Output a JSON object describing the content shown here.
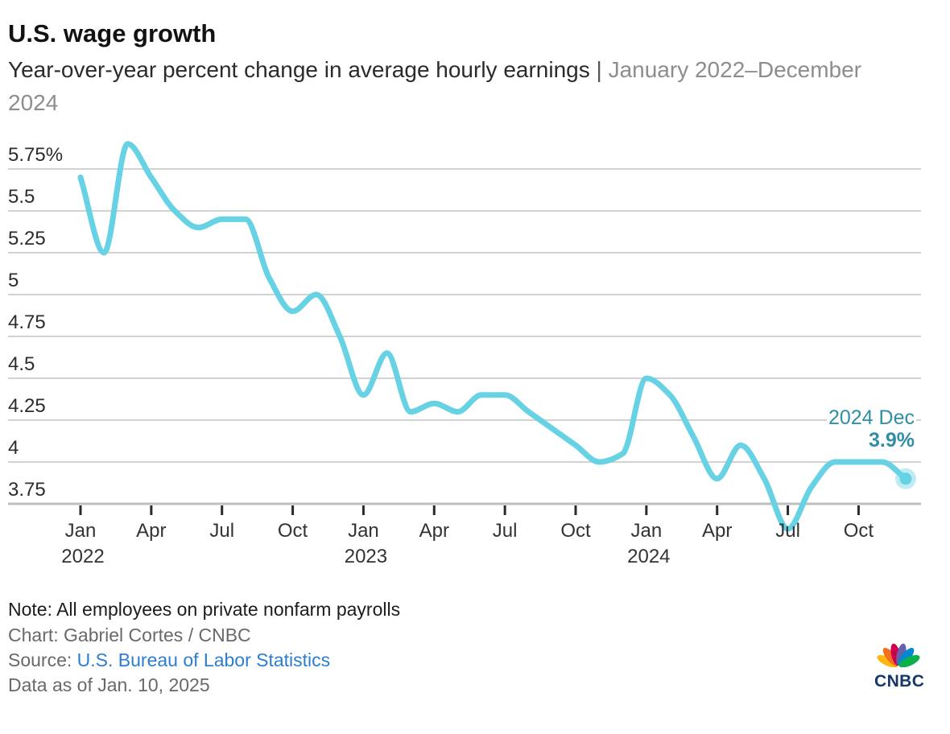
{
  "header": {
    "title": "U.S. wage growth",
    "subtitle_main": "Year-over-year percent change in average hourly earnings",
    "subtitle_separator": " | ",
    "subtitle_period": "January 2022–December 2024"
  },
  "chart_data": {
    "type": "line",
    "title": "U.S. wage growth",
    "unit": "%",
    "grid": true,
    "legend": false,
    "months": [
      "2022-01",
      "2022-02",
      "2022-03",
      "2022-04",
      "2022-05",
      "2022-06",
      "2022-07",
      "2022-08",
      "2022-09",
      "2022-10",
      "2022-11",
      "2022-12",
      "2023-01",
      "2023-02",
      "2023-03",
      "2023-04",
      "2023-05",
      "2023-06",
      "2023-07",
      "2023-08",
      "2023-09",
      "2023-10",
      "2023-11",
      "2023-12",
      "2024-01",
      "2024-02",
      "2024-03",
      "2024-04",
      "2024-05",
      "2024-06",
      "2024-07",
      "2024-08",
      "2024-09",
      "2024-10",
      "2024-11",
      "2024-12"
    ],
    "values": [
      5.7,
      5.25,
      5.9,
      5.7,
      5.5,
      5.4,
      5.45,
      5.45,
      5.1,
      4.9,
      5.0,
      4.75,
      4.4,
      4.65,
      4.3,
      4.35,
      4.3,
      4.4,
      4.4,
      4.3,
      4.2,
      4.1,
      4.0,
      4.05,
      4.5,
      4.4,
      4.15,
      3.9,
      4.1,
      3.9,
      3.6,
      3.85,
      4.0,
      4.0,
      4.0,
      3.9
    ],
    "ylim": [
      3.55,
      5.95
    ],
    "yticks": [
      {
        "v": 5.75,
        "label": "5.75%"
      },
      {
        "v": 5.5,
        "label": "5.5"
      },
      {
        "v": 5.25,
        "label": "5.25"
      },
      {
        "v": 5.0,
        "label": "5"
      },
      {
        "v": 4.75,
        "label": "4.75"
      },
      {
        "v": 4.5,
        "label": "4.5"
      },
      {
        "v": 4.25,
        "label": "4.25"
      },
      {
        "v": 4.0,
        "label": "4"
      },
      {
        "v": 3.75,
        "label": "3.75"
      }
    ],
    "xticks": [
      {
        "m": 0,
        "month": "Jan",
        "year": "2022"
      },
      {
        "m": 3,
        "month": "Apr"
      },
      {
        "m": 6,
        "month": "Jul"
      },
      {
        "m": 9,
        "month": "Oct"
      },
      {
        "m": 12,
        "month": "Jan",
        "year": "2023"
      },
      {
        "m": 15,
        "month": "Apr"
      },
      {
        "m": 18,
        "month": "Jul"
      },
      {
        "m": 21,
        "month": "Oct"
      },
      {
        "m": 24,
        "month": "Jan",
        "year": "2024"
      },
      {
        "m": 27,
        "month": "Apr"
      },
      {
        "m": 30,
        "month": "Jul"
      },
      {
        "m": 33,
        "month": "Oct"
      }
    ],
    "line_color": "#66d2e3",
    "annotation": {
      "line1": "2024 Dec",
      "line2": "3.9%",
      "color": "#2f8fa4"
    }
  },
  "footer": {
    "note": "Note: All employees on private nonfarm payrolls",
    "credit": "Chart: Gabriel Cortes / CNBC",
    "source_label": "Source: ",
    "source_link": "U.S. Bureau of Labor Statistics",
    "data_as_of": "Data as of Jan. 10, 2025",
    "logo_text": "CNBC"
  },
  "logo_colors": {
    "yellow": "#FCB711",
    "orange": "#F37021",
    "red": "#CC004C",
    "purple": "#6460AA",
    "blue": "#0089D0",
    "green": "#0DB14B",
    "wordmark": "#14386b"
  }
}
